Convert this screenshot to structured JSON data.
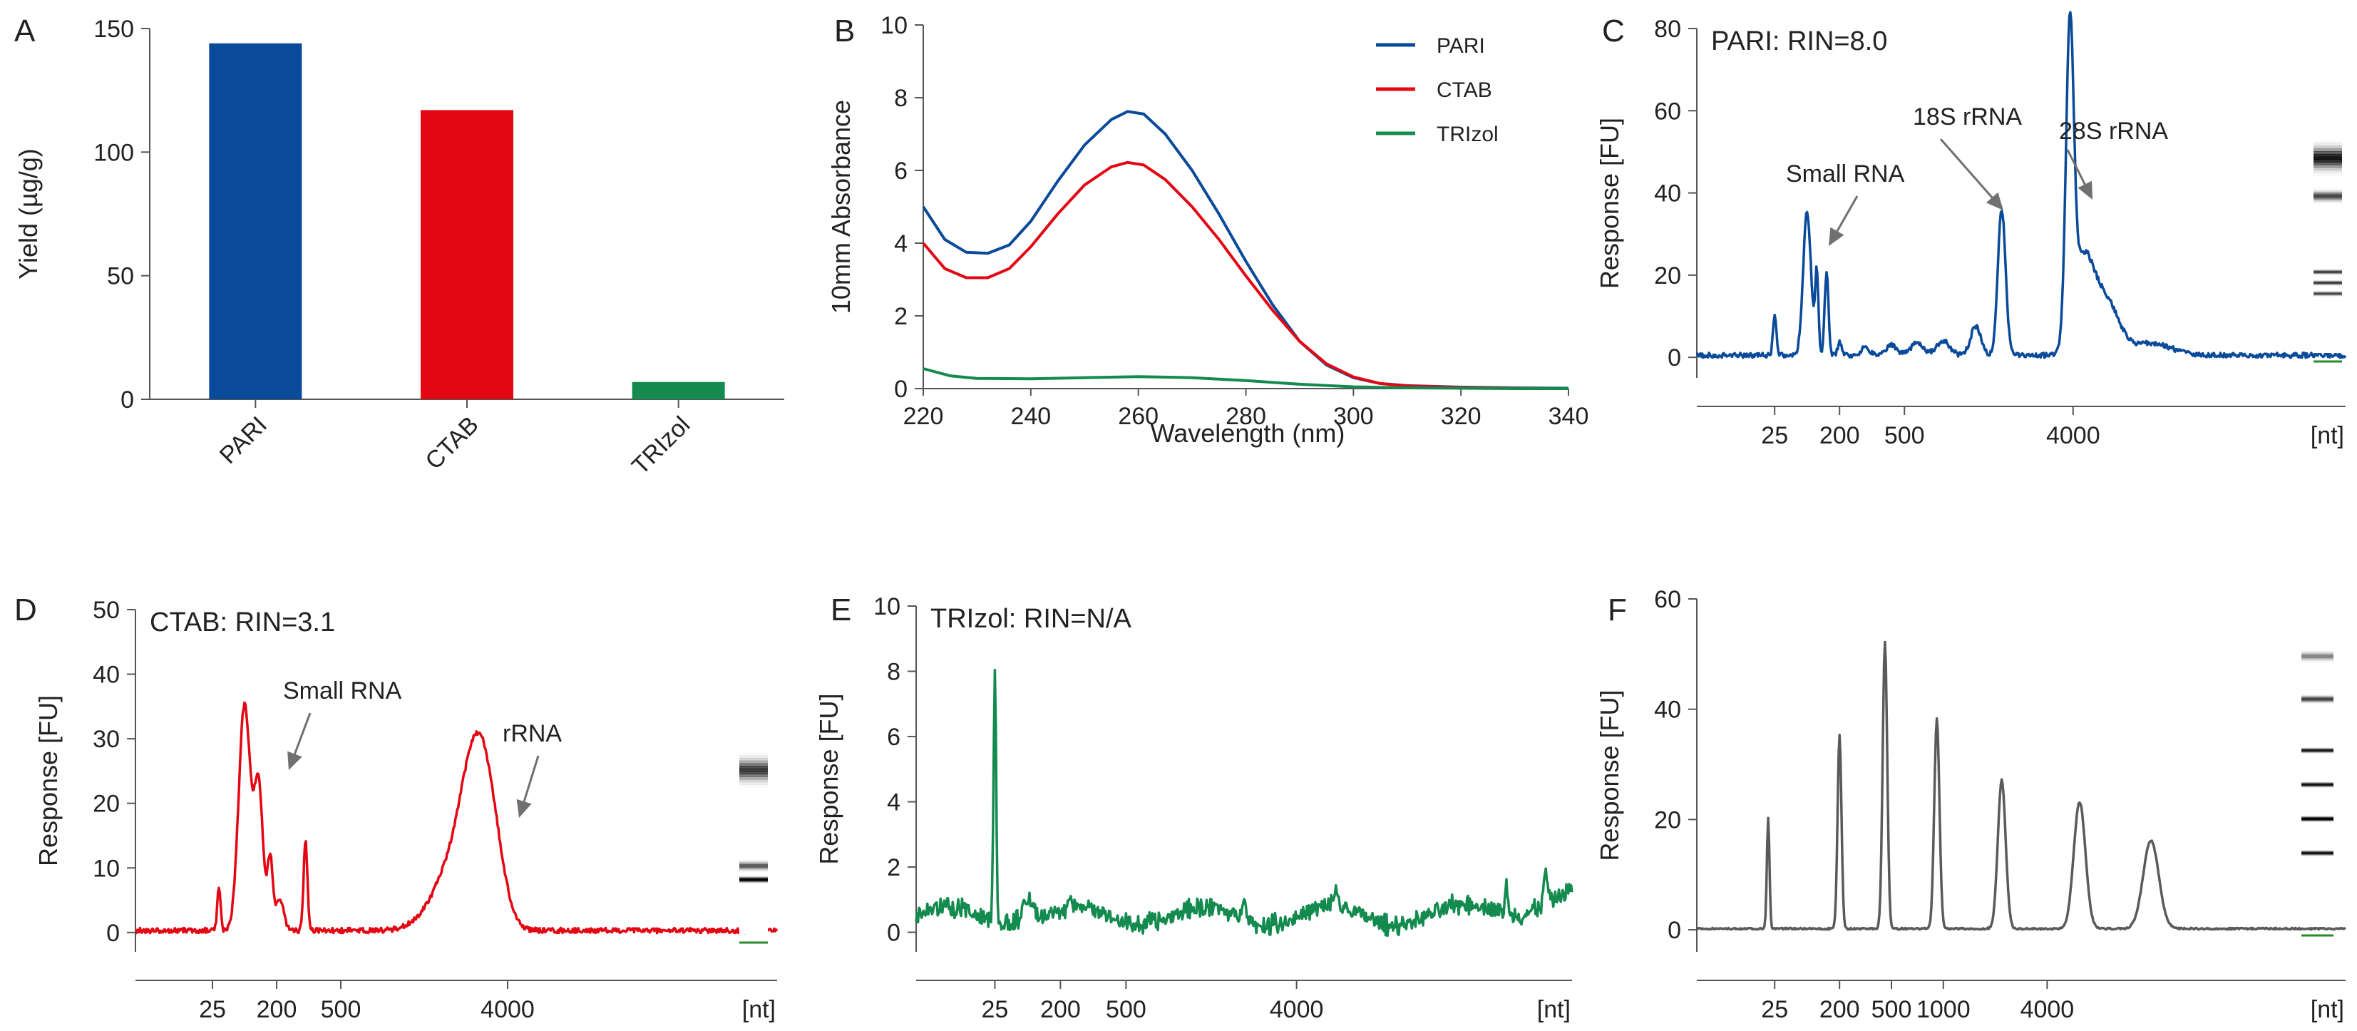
{
  "colors": {
    "pari": "#0a4a9a",
    "ctab": "#e30613",
    "trizol": "#138a4e",
    "ladder": "#5a5a5a",
    "axis": "#555555",
    "arrow": "#707070",
    "marker": "#2a8a2a"
  },
  "chart_data": [
    {
      "id": "A",
      "type": "bar",
      "panel": "A",
      "title": "",
      "categories": [
        "PARI",
        "CTAB",
        "TRIzol"
      ],
      "values": [
        144,
        117,
        7
      ],
      "colors": [
        "#0a4a9a",
        "#e30613",
        "#138a4e"
      ],
      "ylabel": "Yield (µg/g)",
      "xlabel": "",
      "ylim": [
        0,
        150
      ],
      "yticks": [
        "0",
        "50",
        "100",
        "150"
      ],
      "ytick_values": [
        0,
        50,
        100,
        150
      ]
    },
    {
      "id": "B",
      "type": "line",
      "panel": "B",
      "title": "",
      "xlabel": "Wavelength (nm)",
      "ylabel": "10mm Absorbance",
      "xlim": [
        220,
        340
      ],
      "ylim": [
        0,
        10
      ],
      "xticks": [
        "220",
        "240",
        "260",
        "280",
        "300",
        "320",
        "340"
      ],
      "xtick_values": [
        220,
        240,
        260,
        280,
        300,
        320,
        340
      ],
      "yticks": [
        "0",
        "2",
        "4",
        "6",
        "8",
        "10"
      ],
      "ytick_values": [
        0,
        2,
        4,
        6,
        8,
        10
      ],
      "legend": "top-right",
      "series": [
        {
          "name": "PARI",
          "color": "#0a4a9a",
          "x": [
            220,
            224,
            228,
            232,
            236,
            240,
            245,
            250,
            255,
            258,
            261,
            265,
            270,
            275,
            280,
            285,
            290,
            295,
            300,
            305,
            310,
            320,
            330,
            340
          ],
          "y": [
            5.0,
            4.1,
            3.75,
            3.72,
            3.95,
            4.6,
            5.7,
            6.7,
            7.4,
            7.62,
            7.55,
            7.0,
            6.0,
            4.8,
            3.5,
            2.3,
            1.3,
            0.65,
            0.3,
            0.14,
            0.08,
            0.04,
            0.02,
            0.01
          ]
        },
        {
          "name": "CTAB",
          "color": "#e30613",
          "x": [
            220,
            224,
            228,
            232,
            236,
            240,
            245,
            250,
            255,
            258,
            261,
            265,
            270,
            275,
            280,
            285,
            290,
            295,
            300,
            305,
            310,
            320,
            330,
            340
          ],
          "y": [
            4.0,
            3.3,
            3.05,
            3.05,
            3.3,
            3.9,
            4.8,
            5.6,
            6.1,
            6.22,
            6.15,
            5.75,
            5.0,
            4.1,
            3.1,
            2.15,
            1.3,
            0.68,
            0.32,
            0.14,
            0.07,
            0.03,
            0.01,
            0.0
          ]
        },
        {
          "name": "TRIzol",
          "color": "#138a4e",
          "x": [
            220,
            225,
            230,
            240,
            250,
            260,
            270,
            280,
            290,
            300,
            310,
            320,
            330,
            340
          ],
          "y": [
            0.55,
            0.35,
            0.28,
            0.27,
            0.3,
            0.33,
            0.3,
            0.22,
            0.12,
            0.05,
            0.02,
            0.01,
            0.0,
            0.0
          ]
        }
      ]
    },
    {
      "id": "C",
      "type": "line",
      "panel": "C",
      "title": "PARI: RIN=8.0",
      "xlabel": "[nt]",
      "ylabel": "Response [FU]",
      "xlim": [
        0,
        100
      ],
      "ylim": [
        -5,
        80
      ],
      "xticks": [
        "25",
        "200",
        "500",
        "4000"
      ],
      "xtick_values": [
        12,
        22,
        32,
        58
      ],
      "yticks": [
        "0",
        "20",
        "40",
        "60",
        "80"
      ],
      "ytick_values": [
        0,
        20,
        40,
        60,
        80
      ],
      "baseline": 0.5,
      "peaks": [
        [
          12,
          10,
          0.25
        ],
        [
          17,
          35,
          0.6
        ],
        [
          18.5,
          20,
          0.25
        ],
        [
          20,
          20,
          0.3
        ],
        [
          22,
          3,
          0.3
        ],
        [
          26,
          2,
          0.6
        ],
        [
          30,
          2.5,
          0.8
        ],
        [
          34,
          3,
          1.0
        ],
        [
          38,
          3.5,
          1.0
        ],
        [
          43,
          7,
          0.8
        ],
        [
          47,
          35.5,
          0.6
        ],
        [
          57.5,
          73,
          0.6
        ],
        [
          59.5,
          22,
          1.6
        ],
        [
          63,
          13,
          2.0
        ],
        [
          70,
          3,
          3.0
        ]
      ],
      "noise": 0.6,
      "seed": 3,
      "color": "#0a4a9a",
      "annotations": [
        {
          "text": "Small RNA",
          "x": 20,
          "y": 45
        },
        {
          "text": "18S rRNA",
          "x": 45,
          "y": 58
        },
        {
          "text": "28S rRNA",
          "x": 67,
          "y": 54
        }
      ],
      "gel_bands": [
        {
          "pos": 0.28,
          "w": 0.12,
          "s": 0.9
        },
        {
          "pos": 0.42,
          "w": 0.05,
          "s": 0.6
        },
        {
          "pos": 0.7,
          "w": 0.02,
          "s": 0.5
        },
        {
          "pos": 0.74,
          "w": 0.02,
          "s": 0.5
        },
        {
          "pos": 0.78,
          "w": 0.02,
          "s": 0.45
        }
      ]
    },
    {
      "id": "D",
      "type": "line",
      "panel": "D",
      "title": "CTAB: RIN=3.1",
      "xlabel": "[nt]",
      "ylabel": "Response [FU]",
      "xlim": [
        0,
        100
      ],
      "ylim": [
        -3,
        50
      ],
      "xticks": [
        "25",
        "200",
        "500",
        "4000"
      ],
      "xtick_values": [
        12,
        22,
        32,
        58
      ],
      "yticks": [
        "0",
        "10",
        "20",
        "30",
        "40",
        "50"
      ],
      "ytick_values": [
        0,
        10,
        20,
        30,
        40,
        50
      ],
      "baseline": 0.3,
      "peaks": [
        [
          13,
          7,
          0.25
        ],
        [
          17,
          35,
          0.9
        ],
        [
          19.2,
          22,
          0.7
        ],
        [
          21,
          11,
          0.4
        ],
        [
          22.5,
          5,
          0.6
        ],
        [
          26.5,
          14,
          0.3
        ],
        [
          50,
          10,
          3.5
        ],
        [
          53,
          19,
          2.2
        ],
        [
          55.5,
          10,
          2.0
        ]
      ],
      "noise": 0.4,
      "seed": 7,
      "color": "#e30613",
      "annotations": [
        {
          "text": "Small RNA",
          "x": 24,
          "y": 38
        },
        {
          "text": "rRNA",
          "x": 57,
          "y": 30
        }
      ],
      "gel_bands": [
        {
          "pos": 0.28,
          "w": 0.14,
          "s": 0.75
        },
        {
          "pos": 0.7,
          "w": 0.05,
          "s": 0.5
        },
        {
          "pos": 0.76,
          "w": 0.03,
          "s": 0.95
        }
      ]
    },
    {
      "id": "E",
      "type": "line",
      "panel": "E",
      "title": "TRIzol: RIN=N/A",
      "xlabel": "[nt]",
      "ylabel": "Response [FU]",
      "xlim": [
        0,
        100
      ],
      "ylim": [
        -0.6,
        10
      ],
      "xticks": [
        "25",
        "200",
        "500",
        "4000"
      ],
      "xtick_values": [
        12,
        22,
        32,
        58
      ],
      "yticks": [
        "0",
        "2",
        "4",
        "6",
        "8",
        "10"
      ],
      "ytick_values": [
        0,
        2,
        4,
        6,
        8,
        10
      ],
      "baseline": 0.5,
      "peaks": [
        [
          12,
          7.7,
          0.2
        ],
        [
          17,
          0.8,
          0.8
        ],
        [
          50,
          0.8,
          0.3
        ],
        [
          64,
          0.6,
          0.3
        ],
        [
          90,
          0.9,
          0.2
        ],
        [
          96,
          1.0,
          0.3
        ]
      ],
      "noise": 0.22,
      "seed": 11,
      "color": "#138a4e",
      "annotations": [],
      "gel_bands": []
    },
    {
      "id": "F",
      "type": "line",
      "panel": "F",
      "title": "",
      "xlabel": "[nt]",
      "ylabel": "Response [FU]",
      "xlim": [
        0,
        100
      ],
      "ylim": [
        -4,
        60
      ],
      "xticks": [
        "25",
        "200",
        "500",
        "1000",
        "4000"
      ],
      "xtick_values": [
        12,
        22,
        30,
        38,
        54
      ],
      "yticks": [
        "0",
        "20",
        "40",
        "60"
      ],
      "ytick_values": [
        0,
        20,
        40,
        60
      ],
      "baseline": 0.2,
      "peaks": [
        [
          11,
          20,
          0.2
        ],
        [
          22,
          35,
          0.3
        ],
        [
          29,
          52,
          0.35
        ],
        [
          37,
          38,
          0.4
        ],
        [
          47,
          27,
          0.6
        ],
        [
          59,
          23,
          0.9
        ],
        [
          70,
          16,
          1.2
        ]
      ],
      "noise": 0.15,
      "seed": 5,
      "color": "#5a5a5a",
      "annotations": [],
      "gel_bands": [
        {
          "pos": 0.05,
          "w": 0.04,
          "s": 0.35
        },
        {
          "pos": 0.2,
          "w": 0.03,
          "s": 0.55
        },
        {
          "pos": 0.38,
          "w": 0.02,
          "s": 0.7
        },
        {
          "pos": 0.5,
          "w": 0.02,
          "s": 0.75
        },
        {
          "pos": 0.62,
          "w": 0.02,
          "s": 0.95
        },
        {
          "pos": 0.74,
          "w": 0.02,
          "s": 0.75
        }
      ]
    }
  ]
}
